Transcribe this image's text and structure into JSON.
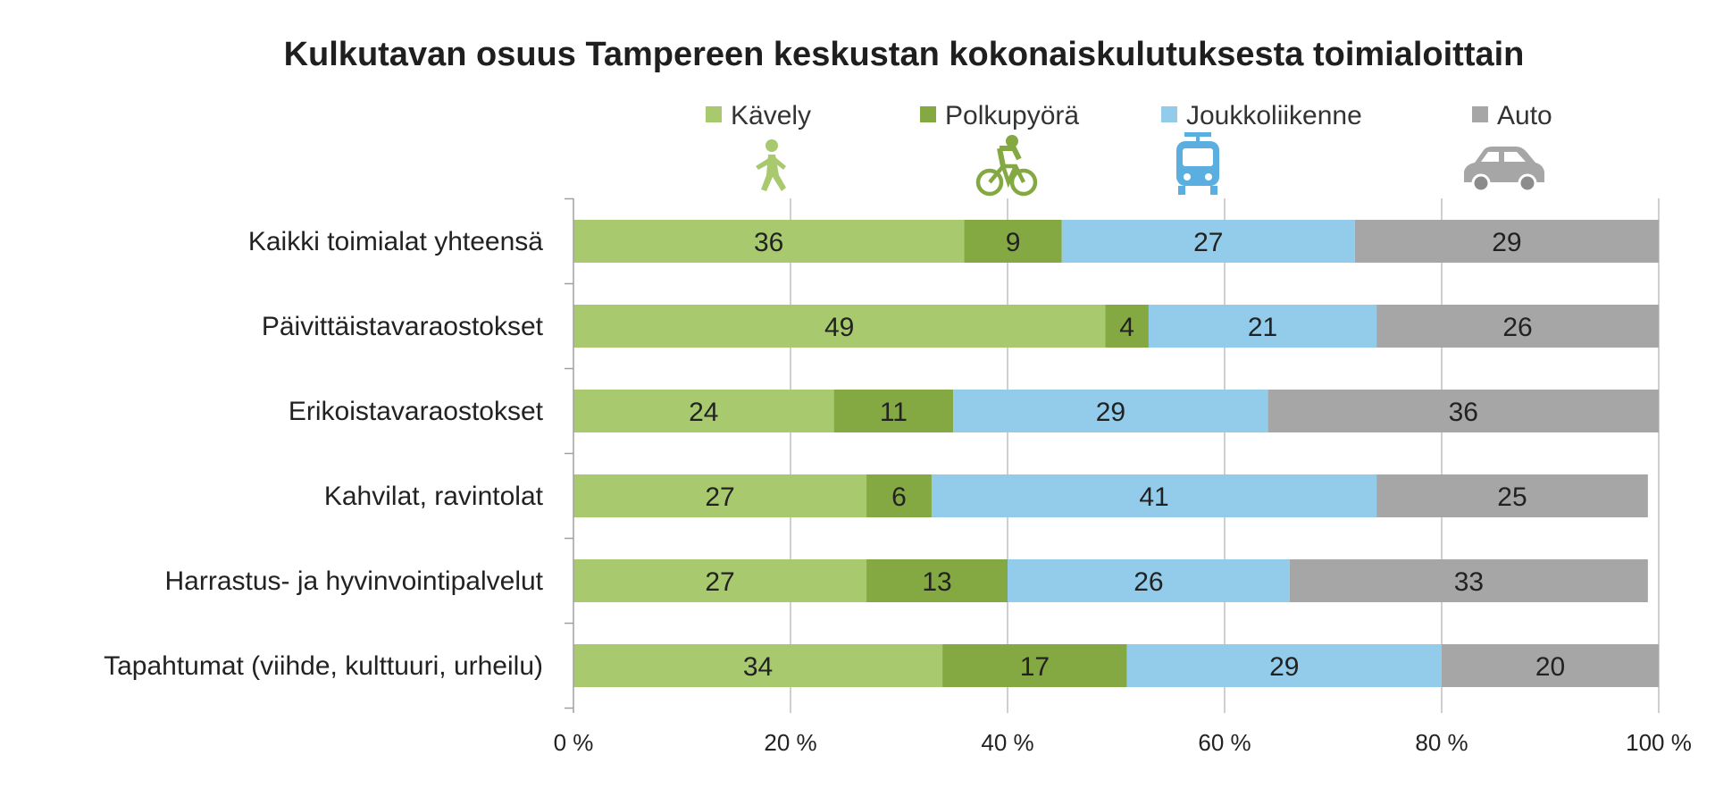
{
  "chart_data": {
    "type": "bar",
    "orientation": "horizontal",
    "stacked": true,
    "title": "Kulkutavan osuus Tampereen keskustan kokonaiskulutuksesta toimialoittain",
    "categories": [
      "Kaikki toimialat yhteensä",
      "Päivittäistavaraostokset",
      "Erikoistavaraostokset",
      "Kahvilat, ravintolat",
      "Harrastus- ja hyvinvointipalvelut",
      "Tapahtumat (viihde, kulttuuri, urheilu)"
    ],
    "series": [
      {
        "name": "Kävely",
        "color": "#a9c96f",
        "icon": "walking-person-icon",
        "values": [
          36,
          49,
          24,
          27,
          27,
          34
        ]
      },
      {
        "name": "Polkupyörä",
        "color": "#84a943",
        "icon": "bicycle-icon",
        "values": [
          9,
          4,
          11,
          6,
          13,
          17
        ]
      },
      {
        "name": "Joukkoliikenne",
        "color": "#93ccea",
        "icon": "tram-icon",
        "values": [
          27,
          21,
          29,
          41,
          26,
          29
        ]
      },
      {
        "name": "Auto",
        "color": "#a6a6a6",
        "icon": "car-icon",
        "values": [
          29,
          26,
          36,
          25,
          33,
          20
        ]
      }
    ],
    "xlim": [
      0,
      100
    ],
    "xticks": [
      "0 %",
      "20 %",
      "40 %",
      "60 %",
      "80 %",
      "100 %"
    ],
    "grid": "vertical",
    "legend_position": "top"
  }
}
